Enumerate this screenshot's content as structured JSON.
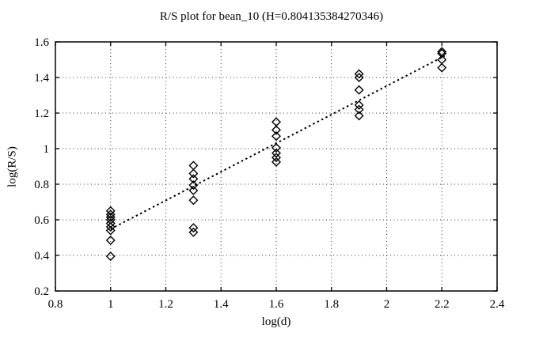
{
  "colors": {
    "background": "#ffffff",
    "foreground": "#000000"
  },
  "chart_data": {
    "type": "scatter",
    "title": "R/S plot for bean_10 (H=0.804135384270346)",
    "xlabel": "log(d)",
    "ylabel": "log(R/S)",
    "xlim": [
      0.8,
      2.4
    ],
    "ylim": [
      0.2,
      1.6
    ],
    "xticks": [
      0.8,
      1,
      1.2,
      1.4,
      1.6,
      1.8,
      2,
      2.2,
      2.4
    ],
    "xtick_labels": [
      "0.8",
      "1",
      "1.2",
      "1.4",
      "1.6",
      "1.8",
      "2",
      "2.2",
      "2.4"
    ],
    "yticks": [
      0.2,
      0.4,
      0.6,
      0.8,
      1,
      1.2,
      1.4,
      1.6
    ],
    "ytick_labels": [
      "0.2",
      "0.4",
      "0.6",
      "0.8",
      "1",
      "1.2",
      "1.4",
      "1.6"
    ],
    "grid": true,
    "legend": "none",
    "marker": "open-diamond",
    "hurst_exponent": 0.804135384270346,
    "series": [
      {
        "name": "rs-values",
        "points": [
          [
            1.0,
            0.65
          ],
          [
            1.0,
            0.63
          ],
          [
            1.0,
            0.615
          ],
          [
            1.0,
            0.6
          ],
          [
            1.0,
            0.58
          ],
          [
            1.0,
            0.56
          ],
          [
            1.0,
            0.54
          ],
          [
            1.0,
            0.485
          ],
          [
            1.0,
            0.395
          ],
          [
            1.3,
            0.905
          ],
          [
            1.3,
            0.86
          ],
          [
            1.3,
            0.83
          ],
          [
            1.3,
            0.795
          ],
          [
            1.3,
            0.765
          ],
          [
            1.3,
            0.71
          ],
          [
            1.3,
            0.555
          ],
          [
            1.3,
            0.53
          ],
          [
            1.6,
            1.15
          ],
          [
            1.6,
            1.105
          ],
          [
            1.6,
            1.07
          ],
          [
            1.6,
            1.005
          ],
          [
            1.6,
            0.975
          ],
          [
            1.6,
            0.95
          ],
          [
            1.6,
            0.925
          ],
          [
            1.9,
            1.42
          ],
          [
            1.9,
            1.4
          ],
          [
            1.9,
            1.33
          ],
          [
            1.9,
            1.245
          ],
          [
            1.9,
            1.22
          ],
          [
            1.9,
            1.185
          ],
          [
            2.2,
            1.545
          ],
          [
            2.2,
            1.535
          ],
          [
            2.2,
            1.5
          ],
          [
            2.2,
            1.455
          ]
        ]
      }
    ],
    "fit_line": {
      "slope": 0.804135384270346,
      "intercept": -0.256,
      "x_start": 1.0,
      "x_end": 2.21,
      "style": "dotted"
    }
  }
}
